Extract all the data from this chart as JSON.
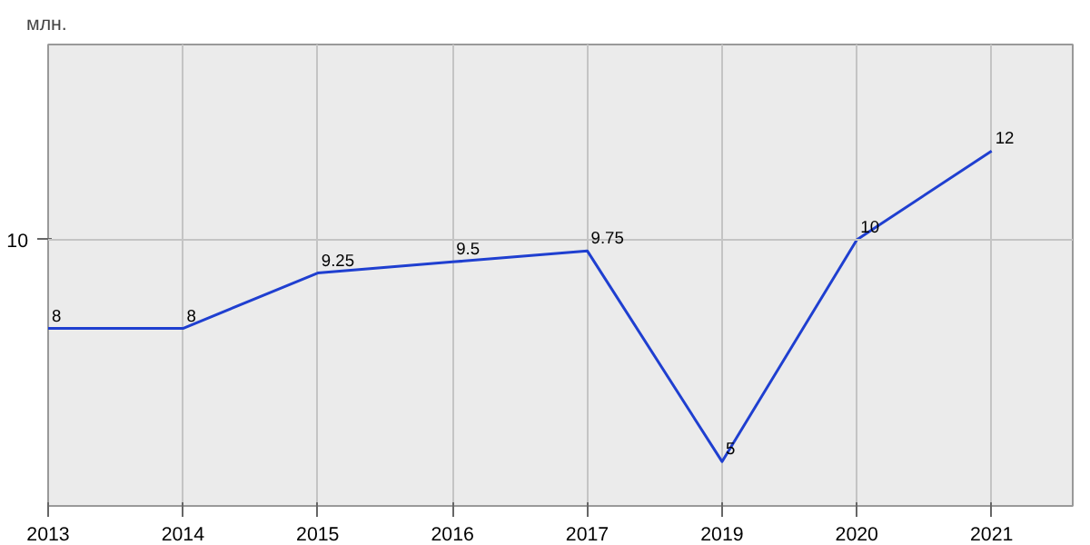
{
  "chart_data": {
    "type": "line",
    "ylabel": "млн.",
    "categories": [
      "2013",
      "2014",
      "2015",
      "2016",
      "2017",
      "2019",
      "2020",
      "2021"
    ],
    "series": [
      {
        "color": "#1f3fd0",
        "values": [
          8,
          8,
          9.25,
          9.5,
          9.75,
          5,
          10,
          12
        ]
      }
    ],
    "ylim": [
      4,
      14.4
    ],
    "ref_lines": [
      {
        "axis": "y",
        "value": 10,
        "label": "10",
        "color": "#c4c4c4"
      }
    ],
    "grid": "x",
    "data_labels": true,
    "marker": "none",
    "line_style": "solid"
  }
}
